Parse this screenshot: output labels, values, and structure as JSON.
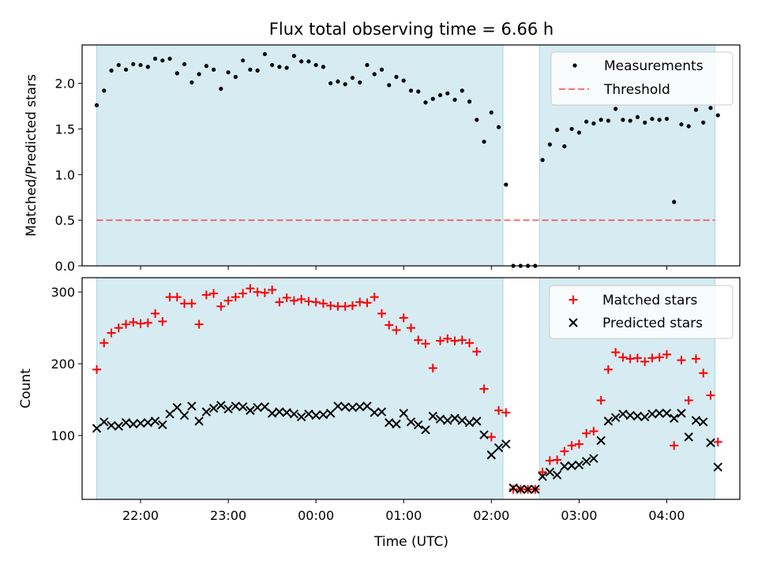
{
  "figure": {
    "title": "Flux total observing time = 6.66 h",
    "xlabel": "Time (UTC)"
  },
  "colors": {
    "band": "#add8e6",
    "matched": "#ff0000",
    "predicted": "#000000",
    "measurement": "#000000",
    "threshold": "#ff0000"
  },
  "chart_data": [
    {
      "type": "scatter",
      "ylabel": "Matched/Predicted stars",
      "ylim": [
        0,
        2.42
      ],
      "yticks": [
        0.0,
        0.5,
        1.0,
        1.5,
        2.0
      ],
      "ytick_labels": [
        "0.0",
        "0.5",
        "1.0",
        "1.5",
        "2.0"
      ],
      "legend": "top-right",
      "shaded_intervals": [
        [
          "21:30",
          "02:08"
        ],
        [
          "02:33",
          "04:33"
        ]
      ],
      "threshold": {
        "name": "Threshold",
        "value": 0.5,
        "x_range": [
          "21:30",
          "04:33"
        ],
        "style": "dashed"
      },
      "series": [
        {
          "name": "Measurements",
          "x": [
            "21:30",
            "21:35",
            "21:40",
            "21:45",
            "21:50",
            "21:55",
            "22:00",
            "22:05",
            "22:10",
            "22:15",
            "22:20",
            "22:25",
            "22:30",
            "22:35",
            "22:40",
            "22:45",
            "22:50",
            "22:55",
            "23:00",
            "23:05",
            "23:10",
            "23:15",
            "23:20",
            "23:25",
            "23:30",
            "23:35",
            "23:40",
            "23:45",
            "23:50",
            "23:55",
            "00:00",
            "00:05",
            "00:10",
            "00:15",
            "00:20",
            "00:25",
            "00:30",
            "00:35",
            "00:40",
            "00:45",
            "00:50",
            "00:55",
            "01:00",
            "01:05",
            "01:10",
            "01:15",
            "01:20",
            "01:25",
            "01:30",
            "01:35",
            "01:40",
            "01:45",
            "01:50",
            "01:55",
            "02:00",
            "02:05",
            "02:10",
            "02:15",
            "02:20",
            "02:25",
            "02:30",
            "02:35",
            "02:40",
            "02:45",
            "02:50",
            "02:55",
            "03:00",
            "03:05",
            "03:10",
            "03:15",
            "03:20",
            "03:25",
            "03:30",
            "03:35",
            "03:40",
            "03:45",
            "03:50",
            "03:55",
            "04:00",
            "04:05",
            "04:10",
            "04:15",
            "04:20",
            "04:25",
            "04:30",
            "04:35"
          ],
          "y": [
            1.76,
            1.92,
            2.14,
            2.2,
            2.15,
            2.21,
            2.2,
            2.18,
            2.27,
            2.25,
            2.27,
            2.11,
            2.21,
            2.01,
            2.1,
            2.19,
            2.15,
            1.94,
            2.12,
            2.07,
            2.25,
            2.15,
            2.14,
            2.32,
            2.2,
            2.18,
            2.17,
            2.3,
            2.24,
            2.24,
            2.2,
            2.18,
            2.0,
            2.02,
            1.99,
            2.06,
            2.01,
            2.2,
            2.1,
            2.15,
            1.98,
            2.07,
            2.03,
            1.92,
            1.91,
            1.79,
            1.83,
            1.87,
            1.89,
            1.82,
            1.92,
            1.8,
            1.6,
            1.36,
            1.68,
            1.52,
            0.89,
            0.0,
            0.0,
            0.0,
            0.0,
            1.16,
            1.33,
            1.49,
            1.31,
            1.5,
            1.46,
            1.58,
            1.56,
            1.6,
            1.59,
            1.72,
            1.6,
            1.59,
            1.63,
            1.57,
            1.61,
            1.6,
            1.61,
            0.7,
            1.55,
            1.53,
            1.71,
            1.57,
            1.73,
            1.65
          ]
        }
      ]
    },
    {
      "type": "scatter",
      "ylabel": "Count",
      "ylim": [
        11,
        320
      ],
      "yticks": [
        100,
        200,
        300
      ],
      "ytick_labels": [
        "100",
        "200",
        "300"
      ],
      "legend": "top-right",
      "shaded_intervals": [
        [
          "21:30",
          "02:08"
        ],
        [
          "02:33",
          "04:33"
        ]
      ],
      "xticks": [
        "22:00",
        "23:00",
        "00:00",
        "01:00",
        "02:00",
        "03:00",
        "04:00"
      ],
      "series": [
        {
          "name": "Matched stars",
          "marker": "plus",
          "x": [
            "21:30",
            "21:35",
            "21:40",
            "21:45",
            "21:50",
            "21:55",
            "22:00",
            "22:05",
            "22:10",
            "22:15",
            "22:20",
            "22:25",
            "22:30",
            "22:35",
            "22:40",
            "22:45",
            "22:50",
            "22:55",
            "23:00",
            "23:05",
            "23:10",
            "23:15",
            "23:20",
            "23:25",
            "23:30",
            "23:35",
            "23:40",
            "23:45",
            "23:50",
            "23:55",
            "00:00",
            "00:05",
            "00:10",
            "00:15",
            "00:20",
            "00:25",
            "00:30",
            "00:35",
            "00:40",
            "00:45",
            "00:50",
            "00:55",
            "01:00",
            "01:05",
            "01:10",
            "01:15",
            "01:20",
            "01:25",
            "01:30",
            "01:35",
            "01:40",
            "01:45",
            "01:50",
            "01:55",
            "02:00",
            "02:05",
            "02:10",
            "02:15",
            "02:20",
            "02:25",
            "02:30",
            "02:35",
            "02:40",
            "02:45",
            "02:50",
            "02:55",
            "03:00",
            "03:05",
            "03:10",
            "03:15",
            "03:20",
            "03:25",
            "03:30",
            "03:35",
            "03:40",
            "03:45",
            "03:50",
            "03:55",
            "04:00",
            "04:05",
            "04:10",
            "04:15",
            "04:20",
            "04:25",
            "04:30",
            "04:35"
          ],
          "y": [
            192,
            229,
            243,
            250,
            255,
            258,
            256,
            257,
            270,
            259,
            293,
            293,
            284,
            284,
            255,
            296,
            298,
            280,
            288,
            293,
            298,
            305,
            300,
            299,
            303,
            286,
            292,
            288,
            290,
            287,
            286,
            284,
            281,
            280,
            280,
            281,
            286,
            285,
            293,
            270,
            254,
            247,
            264,
            250,
            233,
            228,
            194,
            232,
            235,
            232,
            233,
            229,
            217,
            165,
            98,
            135,
            132,
            25,
            25,
            25,
            25,
            49,
            65,
            66,
            78,
            86,
            88,
            103,
            106,
            149,
            192,
            216,
            209,
            207,
            208,
            203,
            208,
            209,
            213,
            86,
            205,
            149,
            207,
            187,
            156,
            91
          ]
        },
        {
          "name": "Predicted stars",
          "marker": "x",
          "x": [
            "21:30",
            "21:35",
            "21:40",
            "21:45",
            "21:50",
            "21:55",
            "22:00",
            "22:05",
            "22:10",
            "22:15",
            "22:20",
            "22:25",
            "22:30",
            "22:35",
            "22:40",
            "22:45",
            "22:50",
            "22:55",
            "23:00",
            "23:05",
            "23:10",
            "23:15",
            "23:20",
            "23:25",
            "23:30",
            "23:35",
            "23:40",
            "23:45",
            "23:50",
            "23:55",
            "00:00",
            "00:05",
            "00:10",
            "00:15",
            "00:20",
            "00:25",
            "00:30",
            "00:35",
            "00:40",
            "00:45",
            "00:50",
            "00:55",
            "01:00",
            "01:05",
            "01:10",
            "01:15",
            "01:20",
            "01:25",
            "01:30",
            "01:35",
            "01:40",
            "01:45",
            "01:50",
            "01:55",
            "02:00",
            "02:05",
            "02:10",
            "02:15",
            "02:20",
            "02:25",
            "02:30",
            "02:35",
            "02:40",
            "02:45",
            "02:50",
            "02:55",
            "03:00",
            "03:05",
            "03:10",
            "03:15",
            "03:20",
            "03:25",
            "03:30",
            "03:35",
            "03:40",
            "03:45",
            "03:50",
            "03:55",
            "04:00",
            "04:05",
            "04:10",
            "04:15",
            "04:20",
            "04:25",
            "04:30",
            "04:35"
          ],
          "y": [
            110,
            119,
            114,
            113,
            118,
            116,
            117,
            118,
            120,
            115,
            130,
            139,
            128,
            141,
            120,
            133,
            138,
            142,
            137,
            141,
            140,
            135,
            139,
            140,
            131,
            133,
            132,
            130,
            126,
            130,
            128,
            129,
            131,
            141,
            140,
            139,
            140,
            141,
            132,
            133,
            118,
            116,
            131,
            119,
            115,
            108,
            127,
            123,
            121,
            124,
            121,
            118,
            120,
            101,
            73,
            83,
            88,
            27,
            25,
            25,
            25,
            43,
            49,
            45,
            57,
            58,
            59,
            64,
            68,
            93,
            120,
            125,
            130,
            128,
            127,
            126,
            130,
            131,
            131,
            124,
            131,
            98,
            121,
            119,
            90,
            56
          ]
        }
      ]
    }
  ]
}
